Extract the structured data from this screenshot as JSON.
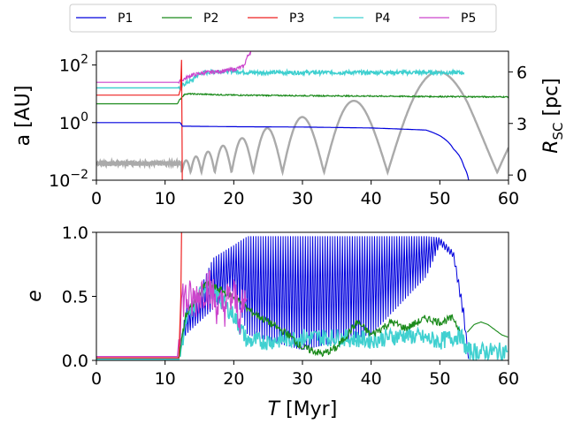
{
  "chart_data": [
    {
      "type": "line",
      "panel": "top",
      "ylabel": "a [AU]",
      "ylabel2": "R_SC [pc]",
      "yscale": "log",
      "ylim": [
        0.01,
        300
      ],
      "y2lim": [
        -0.3,
        7.2
      ],
      "xlim": [
        0,
        60
      ],
      "xticks": [
        "0",
        "10",
        "20",
        "30",
        "40",
        "50",
        "60"
      ],
      "yticks": [
        {
          "value": 0.01,
          "base": "10",
          "exp": "−2"
        },
        {
          "value": 1,
          "base": "10",
          "exp": "0"
        },
        {
          "value": 100,
          "base": "10",
          "exp": "2"
        }
      ],
      "y2ticks": [
        {
          "value": 0,
          "label": "0"
        },
        {
          "value": 3,
          "label": "3"
        },
        {
          "value": 6,
          "label": "6"
        }
      ],
      "series": [
        {
          "name": "P1",
          "color": "#0000dd",
          "x": [
            0,
            12.2,
            12.5,
            20,
            30,
            40,
            48,
            50,
            52,
            53.5,
            54.2
          ],
          "y": [
            1.0,
            1.0,
            0.75,
            0.72,
            0.7,
            0.65,
            0.55,
            0.35,
            0.12,
            0.03,
            0.01
          ]
        },
        {
          "name": "P2",
          "color": "#1a8a1a",
          "x": [
            0,
            11.8,
            12.0,
            12.5,
            13,
            20,
            30,
            40,
            50,
            60
          ],
          "y": [
            4.5,
            4.5,
            5.5,
            8.0,
            10.0,
            9.0,
            8.6,
            8.3,
            8.0,
            7.8
          ]
        },
        {
          "name": "P3",
          "color": "#ee2222",
          "x": [
            0,
            12.0,
            12.3,
            12.4,
            12.45,
            12.5
          ],
          "y": [
            9.0,
            9.0,
            15.0,
            150.0,
            0.5,
            0.01
          ]
        },
        {
          "name": "P4",
          "color": "#40d0d0",
          "x": [
            0,
            12.2,
            12.5,
            14,
            15,
            17,
            20,
            22,
            30,
            40,
            53.5
          ],
          "y": [
            16.0,
            16.0,
            20.0,
            30.0,
            50.0,
            60.0,
            62.0,
            55.0,
            55.0,
            55.0,
            55.0
          ]
        },
        {
          "name": "P5",
          "color": "#cc44cc",
          "x": [
            0,
            12.0,
            12.5,
            14,
            16,
            18,
            20,
            21.5,
            22.5
          ],
          "y": [
            25.0,
            25.0,
            30.0,
            45.0,
            55.0,
            60.0,
            70.0,
            90.0,
            300.0
          ]
        },
        {
          "name": "R_SC",
          "color": "#aaaaaa",
          "x": [
            0,
            12.4,
            25,
            40,
            54,
            60
          ],
          "y_axis": "right",
          "note": "oscillating cluster-centric radius, growing amplitude",
          "amplitude": [
            0.55,
            0.6,
            2.6,
            4.5,
            6.5,
            6.3
          ]
        }
      ]
    },
    {
      "type": "line",
      "panel": "bottom",
      "xlabel": "T [Myr]",
      "ylabel": "e",
      "xlim": [
        0,
        60
      ],
      "ylim": [
        0,
        1
      ],
      "xticks": [
        "0",
        "10",
        "20",
        "30",
        "40",
        "50",
        "60"
      ],
      "yticks": [
        {
          "value": 0,
          "label": "0.0"
        },
        {
          "value": 0.5,
          "label": "0.5"
        },
        {
          "value": 1,
          "label": "1.0"
        }
      ],
      "series": [
        {
          "name": "P1",
          "color": "#0000dd",
          "x": [
            0,
            12,
            13,
            15,
            17,
            20,
            22,
            30,
            40,
            48,
            50,
            52,
            53.5,
            54.2
          ],
          "y": [
            0.02,
            0.02,
            0.4,
            0.55,
            0.8,
            0.9,
            0.97,
            0.97,
            0.97,
            0.97,
            0.96,
            0.85,
            0.4,
            0.0
          ],
          "band_low": [
            0.02,
            0.02,
            0.2,
            0.3,
            0.4,
            0.55,
            0.2,
            0.08,
            0.2,
            0.65,
            0.9,
            0.8,
            0.3,
            0.0
          ]
        },
        {
          "name": "P2",
          "color": "#1a8a1a",
          "x": [
            0,
            12,
            13,
            16,
            20,
            22,
            25,
            28,
            30,
            33,
            35,
            38,
            40,
            43,
            45,
            48,
            50,
            52,
            53
          ],
          "y": [
            0.02,
            0.02,
            0.35,
            0.6,
            0.5,
            0.4,
            0.3,
            0.2,
            0.1,
            0.05,
            0.1,
            0.3,
            0.2,
            0.3,
            0.25,
            0.33,
            0.3,
            0.33,
            0.22
          ]
        },
        {
          "name": "P3",
          "color": "#ee2222",
          "x": [
            0,
            12.0,
            12.3,
            12.4
          ],
          "y": [
            0.02,
            0.02,
            0.5,
            1.0
          ]
        },
        {
          "name": "P4",
          "color": "#40d0d0",
          "x": [
            0,
            12,
            13,
            16,
            20,
            22,
            25,
            30,
            35,
            40,
            45,
            50,
            53,
            54,
            60
          ],
          "y": [
            0.01,
            0.01,
            0.3,
            0.6,
            0.35,
            0.15,
            0.15,
            0.18,
            0.18,
            0.16,
            0.2,
            0.15,
            0.2,
            0.07,
            0.07
          ]
        },
        {
          "name": "P5",
          "color": "#cc44cc",
          "x": [
            0,
            11.8,
            12.5,
            14,
            16,
            18,
            20,
            21,
            22
          ],
          "y": [
            0.03,
            0.03,
            0.5,
            0.45,
            0.6,
            0.4,
            0.5,
            0.35,
            0.5
          ]
        },
        {
          "name": "P2 tail",
          "color": "#1a8a1a",
          "x": [
            54,
            55,
            56,
            57,
            58,
            59,
            60
          ],
          "y": [
            0.22,
            0.28,
            0.3,
            0.28,
            0.24,
            0.2,
            0.18
          ],
          "note": "smooth decaying curve after T=54"
        }
      ]
    }
  ],
  "legend": {
    "placement": "top-center",
    "entries": [
      {
        "label": "P1",
        "color": "#0000dd"
      },
      {
        "label": "P2",
        "color": "#1a8a1a"
      },
      {
        "label": "P3",
        "color": "#ee2222"
      },
      {
        "label": "P4",
        "color": "#40d0d0"
      },
      {
        "label": "P5",
        "color": "#cc44cc"
      }
    ]
  },
  "text": {
    "top_ylabel_left": "a [AU]",
    "top_ylabel_right_main": "R",
    "top_ylabel_right_sub": "SC",
    "top_ylabel_right_unit": " [pc]",
    "bottom_ylabel": "e",
    "xlabel_main": "T",
    "xlabel_unit": " [Myr]"
  }
}
